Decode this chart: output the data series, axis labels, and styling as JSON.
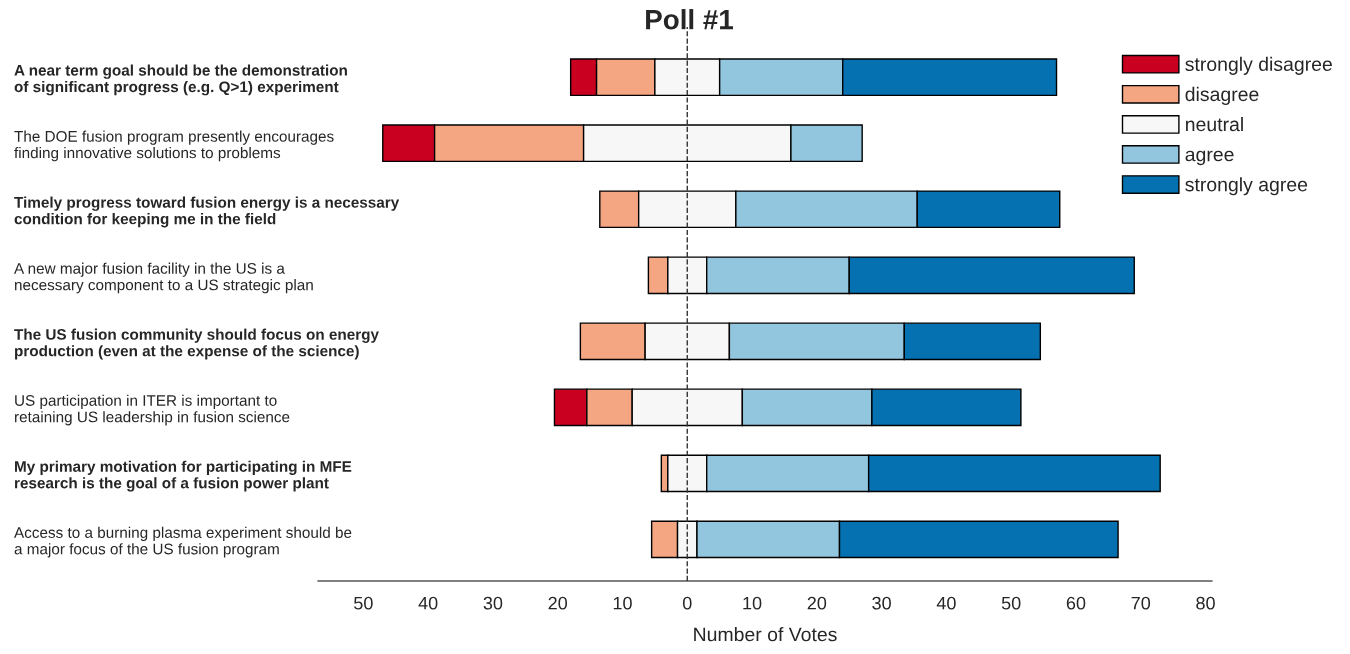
{
  "chart_data": {
    "type": "bar",
    "orientation": "horizontal",
    "title": "Poll #1",
    "xlabel": "Number of Votes",
    "categories": [
      "A near term goal should be the demonstration\nof significant progress (e.g. Q>1) experiment",
      "The DOE fusion program presently encourages\nfinding innovative solutions to problems",
      "Timely progress toward fusion energy is a necessary\ncondition for keeping me in the field",
      "A new major fusion facility in the US is a\nnecessary component to a US strategic plan",
      "The US fusion community should focus on energy\nproduction (even at the expense of the science)",
      "US participation in ITER is important to\nretaining US leadership in fusion science",
      "My primary motivation for participating in MFE\nresearch is the goal of a fusion power plant",
      "Access to a burning plasma experiment should be\na major focus of the US fusion program"
    ],
    "series": [
      {
        "name": "strongly disagree",
        "color": "#ca0020",
        "values": [
          4,
          8,
          0,
          0,
          0,
          5,
          0,
          0
        ],
        "base": [
          -18,
          -47,
          null,
          null,
          null,
          -20.5,
          null,
          null
        ]
      },
      {
        "name": "disagree",
        "color": "#f4a582",
        "values": [
          9,
          23,
          6,
          3,
          10,
          7,
          1,
          4
        ],
        "base": [
          -14,
          -39,
          -13.5,
          -6,
          -16.5,
          -15.5,
          -4,
          -5.5
        ]
      },
      {
        "name": "neutral",
        "color": "#f7f7f7",
        "values": [
          10,
          32,
          15,
          6,
          13,
          17,
          6,
          3
        ],
        "base": [
          -5,
          -16,
          -7.5,
          -3,
          -6.5,
          -8.5,
          -3,
          -1.5
        ]
      },
      {
        "name": "agree",
        "color": "#92c5de",
        "values": [
          19,
          11,
          28,
          22,
          27,
          20,
          25,
          22
        ],
        "base": [
          5,
          16,
          7.5,
          3,
          6.5,
          8.5,
          3,
          1.5
        ]
      },
      {
        "name": "strongly agree",
        "color": "#0571b0",
        "values": [
          33,
          0,
          22,
          44,
          21,
          23,
          45,
          43
        ],
        "base": [
          24,
          null,
          35.5,
          25,
          33.5,
          28.5,
          28,
          23.5
        ]
      }
    ],
    "xlim": [
      -57,
      81
    ],
    "xticks": [
      {
        "value": -50,
        "label": "50"
      },
      {
        "value": -40,
        "label": "40"
      },
      {
        "value": -30,
        "label": "30"
      },
      {
        "value": -20,
        "label": "20"
      },
      {
        "value": -10,
        "label": "10"
      },
      0,
      10,
      20,
      30,
      40,
      50,
      60,
      70,
      80
    ],
    "ref_lines": [
      {
        "axis": "x",
        "value": 0,
        "color": "#333333",
        "line_style": "dashed"
      }
    ],
    "legend": "top right",
    "grid": false
  }
}
